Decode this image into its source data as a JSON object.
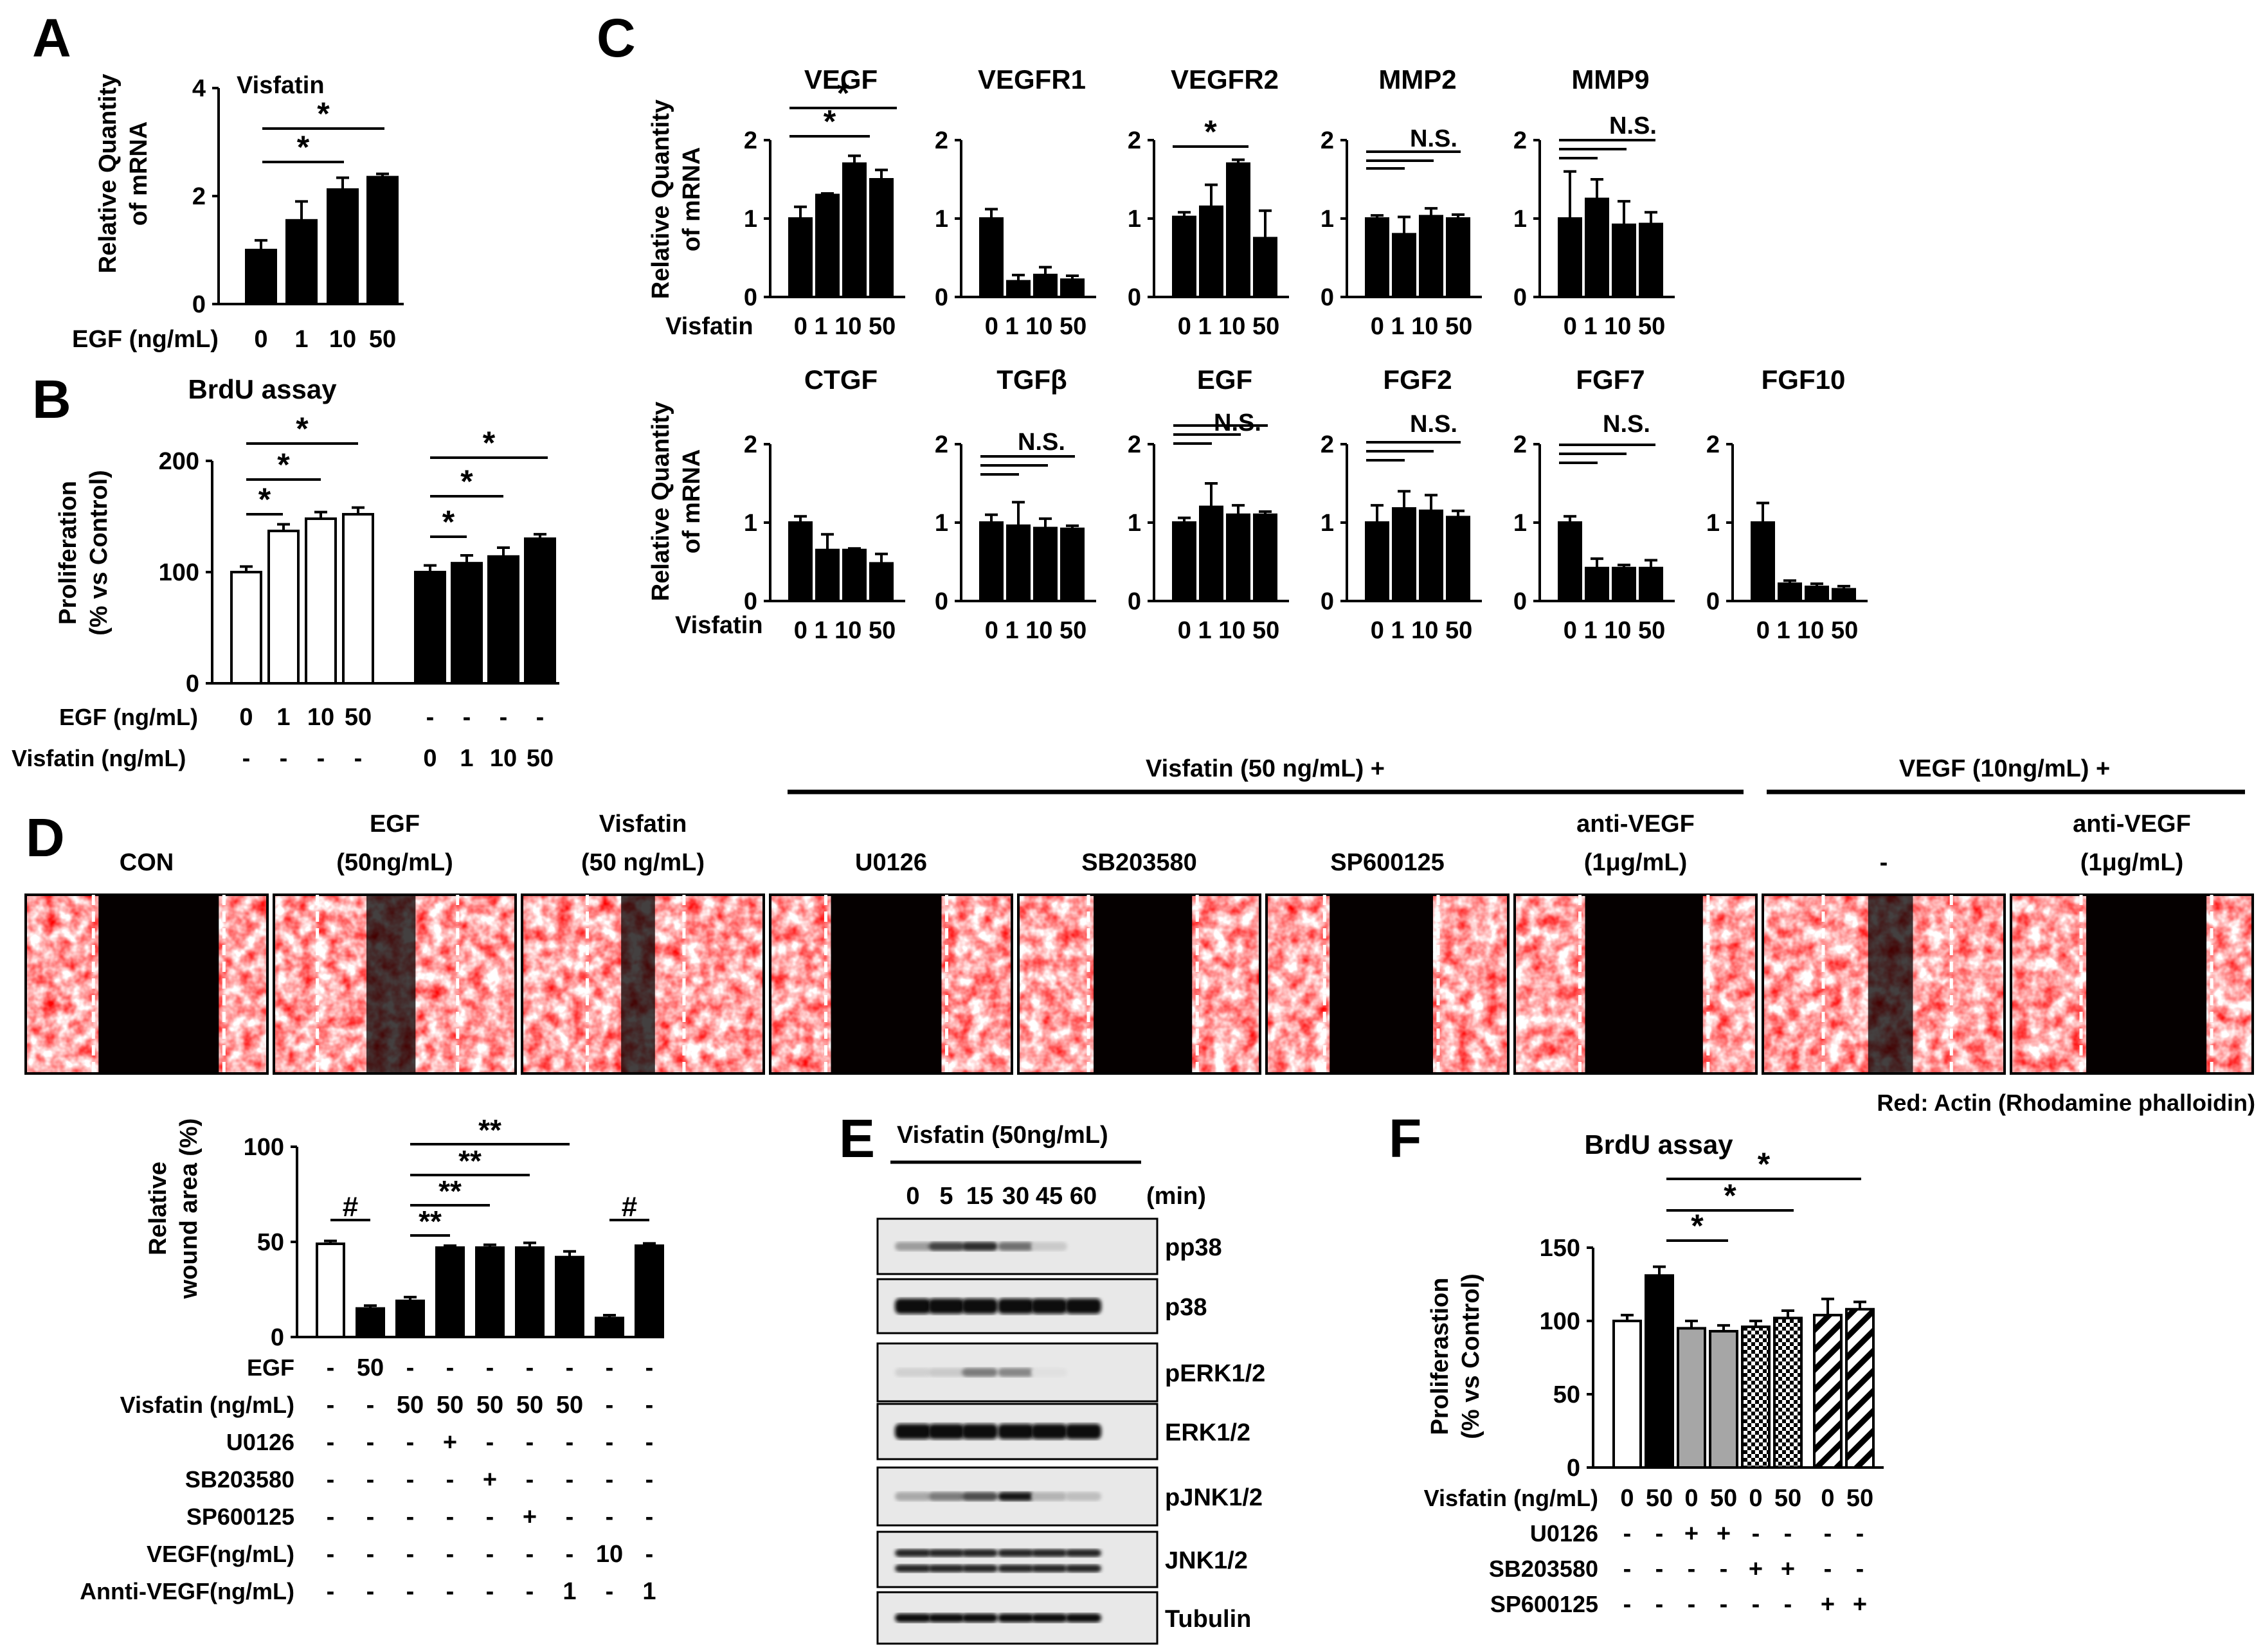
{
  "panels": {
    "A": "A",
    "B": "B",
    "C": "C",
    "D": "D",
    "E": "E",
    "F": "F"
  },
  "common": {
    "star": "*",
    "dstar": "**",
    "hash": "#",
    "ns": "N.S.",
    "minus": "-",
    "plus": "+"
  },
  "panelA": {
    "ylabel1": "Relative Quantity",
    "ylabel2": "of mRNA",
    "xlabel": "EGF (ng/mL)",
    "chart_data": {
      "type": "bar",
      "title": "Visfatin",
      "categories": [
        "0",
        "1",
        "10",
        "50"
      ],
      "values": [
        1.0,
        1.55,
        2.12,
        2.35
      ],
      "errors": [
        0.18,
        0.35,
        0.22,
        0.06
      ],
      "ylim": [
        0,
        4
      ],
      "yticks": [
        "0",
        "2",
        "4"
      ]
    }
  },
  "panelB": {
    "title": "BrdU assay",
    "ylabel1": "Proliferation",
    "ylabel2": "(% vs  Control)",
    "row_labels": [
      "EGF (ng/mL)",
      "Visfatin (ng/mL)"
    ],
    "chart_data": {
      "type": "bar",
      "ylim": [
        0,
        200
      ],
      "yticks": [
        "0",
        "100",
        "200"
      ],
      "series": [
        {
          "name": "EGF",
          "fill": "#ffffff",
          "values": [
            100,
            137,
            148,
            152
          ],
          "errors": [
            5,
            6,
            6,
            6
          ]
        },
        {
          "name": "Visfatin",
          "fill": "#000000",
          "values": [
            100,
            108,
            114,
            130
          ],
          "errors": [
            6,
            7,
            8,
            4
          ]
        }
      ],
      "egf_row": [
        "0",
        "1",
        "10",
        "50",
        "-",
        "-",
        "-",
        "-"
      ],
      "visfatin_row": [
        "-",
        "-",
        "-",
        "-",
        "0",
        "1",
        "10",
        "50"
      ]
    }
  },
  "panelC": {
    "ylabel1": "Relative Quantity",
    "ylabel2": "of  mRNA",
    "xlabel": "Visfatin",
    "categories": [
      "0",
      "1",
      "10",
      "50"
    ],
    "row1_xticks": [
      "0 1 10 50",
      "0 1 10 50",
      "0 1 10 50",
      "0 1 10 50",
      "0 1 10 50"
    ],
    "row2_xticks": [
      "0  1 10 50",
      "0  1 10 50",
      "0  1 10 50",
      "0  1 10 50",
      "0  1 10 50",
      "0  1 10 50"
    ],
    "chart_data": [
      {
        "type": "bar",
        "title": "VEGF",
        "values": [
          1.0,
          1.3,
          1.7,
          1.5
        ],
        "errors": [
          0.15,
          0.02,
          0.1,
          0.12
        ],
        "ylim": [
          0,
          2
        ]
      },
      {
        "type": "bar",
        "title": "VEGFR1",
        "values": [
          1.0,
          0.2,
          0.28,
          0.22
        ],
        "errors": [
          0.12,
          0.08,
          0.1,
          0.05
        ],
        "ylim": [
          0,
          2
        ]
      },
      {
        "type": "bar",
        "title": "VEGFR2",
        "values": [
          1.02,
          1.15,
          1.7,
          0.75
        ],
        "errors": [
          0.06,
          0.28,
          0.05,
          0.35
        ],
        "ylim": [
          0,
          2
        ]
      },
      {
        "type": "bar",
        "title": "MMP2",
        "values": [
          1.0,
          0.8,
          1.03,
          1.0
        ],
        "errors": [
          0.04,
          0.22,
          0.1,
          0.05
        ],
        "ylim": [
          0,
          2
        ]
      },
      {
        "type": "bar",
        "title": "MMP9",
        "values": [
          1.0,
          1.25,
          0.92,
          0.93
        ],
        "errors": [
          0.6,
          0.25,
          0.3,
          0.15
        ],
        "ylim": [
          0,
          2
        ]
      },
      {
        "type": "bar",
        "title": "CTGF",
        "values": [
          1.0,
          0.65,
          0.65,
          0.48
        ],
        "errors": [
          0.08,
          0.2,
          0.02,
          0.12
        ],
        "ylim": [
          0,
          2
        ]
      },
      {
        "type": "bar",
        "title": "TGFβ",
        "values": [
          1.0,
          0.96,
          0.93,
          0.92
        ],
        "errors": [
          0.1,
          0.3,
          0.12,
          0.04
        ],
        "ylim": [
          0,
          2
        ]
      },
      {
        "type": "bar",
        "title": "EGF",
        "values": [
          1.0,
          1.2,
          1.1,
          1.1
        ],
        "errors": [
          0.06,
          0.3,
          0.12,
          0.04
        ],
        "ylim": [
          0,
          2
        ]
      },
      {
        "type": "bar",
        "title": "FGF2",
        "values": [
          1.0,
          1.18,
          1.15,
          1.07
        ],
        "errors": [
          0.22,
          0.22,
          0.2,
          0.08
        ],
        "ylim": [
          0,
          2
        ]
      },
      {
        "type": "bar",
        "title": "FGF7",
        "values": [
          1.0,
          0.42,
          0.42,
          0.42
        ],
        "errors": [
          0.08,
          0.12,
          0.04,
          0.1
        ],
        "ylim": [
          0,
          2
        ]
      },
      {
        "type": "bar",
        "title": "FGF10",
        "values": [
          1.0,
          0.22,
          0.18,
          0.15
        ],
        "errors": [
          0.25,
          0.04,
          0.04,
          0.04
        ],
        "ylim": [
          0,
          2
        ]
      }
    ]
  },
  "panelD": {
    "group1": "Visfatin (50 ng/mL) +",
    "group2": "VEGF (10ng/mL) +",
    "images": [
      {
        "l1": "",
        "l2": "CON"
      },
      {
        "l1": "EGF",
        "l2": "(50ng/mL)"
      },
      {
        "l1": "Visfatin",
        "l2": "(50 ng/mL)"
      },
      {
        "l1": "",
        "l2": "U0126"
      },
      {
        "l1": "",
        "l2": "SB203580"
      },
      {
        "l1": "",
        "l2": "SP600125"
      },
      {
        "l1": "anti-VEGF",
        "l2": "(1μg/mL)"
      },
      {
        "l1": "",
        "l2": "-"
      },
      {
        "l1": "anti-VEGF",
        "l2": "(1μg/mL)"
      }
    ],
    "caption": "Red: Actin (Rhodamine phalloidin)",
    "ylabel1": "Relative",
    "ylabel2": "wound area (%)",
    "row_labels": [
      "EGF",
      "Visfatin (ng/mL)",
      "U0126",
      "SB203580",
      "SP600125",
      "VEGF(ng/mL)",
      "Annti-VEGF(ng/mL)"
    ],
    "rows": [
      [
        "-",
        "50",
        "-",
        "-",
        "-",
        "-",
        "-",
        "-",
        "-"
      ],
      [
        "-",
        "-",
        "50",
        "50",
        "50",
        "50",
        "50",
        "-",
        "-"
      ],
      [
        "-",
        "-",
        "-",
        "+",
        "-",
        "-",
        "-",
        "-",
        "-"
      ],
      [
        "-",
        "-",
        "-",
        "-",
        "+",
        "-",
        "-",
        "-",
        "-"
      ],
      [
        "-",
        "-",
        "-",
        "-",
        "-",
        "+",
        "-",
        "-",
        "-"
      ],
      [
        "-",
        "-",
        "-",
        "-",
        "-",
        "-",
        "-",
        "10",
        "-"
      ],
      [
        "-",
        "-",
        "-",
        "-",
        "-",
        "-",
        "1",
        "-",
        "1"
      ]
    ],
    "chart_data": {
      "type": "bar",
      "ylim": [
        0,
        100
      ],
      "yticks": [
        "0",
        "50",
        "100"
      ],
      "values": [
        49,
        15,
        19,
        47,
        47,
        47,
        42,
        10,
        48
      ],
      "errors": [
        1.5,
        1.5,
        2,
        1,
        1.5,
        2.5,
        3,
        1.5,
        1.2
      ],
      "fills": [
        "#ffffff",
        "#000000",
        "#000000",
        "#000000",
        "#000000",
        "#000000",
        "#000000",
        "#000000",
        "#000000"
      ]
    }
  },
  "panelE": {
    "treatment": "Visfatin (50ng/mL)",
    "times": [
      "0",
      "5",
      "15",
      "30",
      "45",
      "60"
    ],
    "time_unit": "(min)",
    "blots": [
      {
        "label": "pp38",
        "intensity": [
          0.35,
          0.75,
          0.85,
          0.55,
          0.15,
          0.0
        ]
      },
      {
        "label": "p38",
        "intensity": [
          1,
          1,
          1,
          1,
          1,
          1
        ]
      },
      {
        "label": "pERK1/2",
        "intensity": [
          0.12,
          0.15,
          0.5,
          0.45,
          0.05,
          0.0
        ]
      },
      {
        "label": "ERK1/2",
        "intensity": [
          1,
          1,
          1,
          1,
          1,
          1
        ]
      },
      {
        "label": "pJNK1/2",
        "intensity": [
          0.3,
          0.5,
          0.7,
          0.95,
          0.25,
          0.2
        ]
      },
      {
        "label": "JNK1/2",
        "intensity": [
          0.9,
          0.9,
          0.9,
          0.9,
          0.9,
          0.9
        ]
      },
      {
        "label": "Tubulin",
        "intensity": [
          1,
          1,
          1,
          1,
          1,
          1
        ]
      }
    ]
  },
  "panelF": {
    "title": "BrdU assay",
    "ylabel1": "Proliferastion",
    "ylabel2": "(% vs  Control)",
    "row_labels": [
      "Visfatin (ng/mL)",
      "U0126",
      "SB203580",
      "SP600125"
    ],
    "rows": [
      [
        "0",
        "50",
        "0",
        "50",
        "0",
        "50",
        "0",
        "50"
      ],
      [
        "-",
        "-",
        "+",
        "+",
        "-",
        "-",
        "-",
        "-"
      ],
      [
        "-",
        "-",
        "-",
        "-",
        "+",
        "+",
        "-",
        "-"
      ],
      [
        "-",
        "-",
        "-",
        "-",
        "-",
        "-",
        "+",
        "+"
      ]
    ],
    "chart_data": {
      "type": "bar",
      "ylim": [
        0,
        150
      ],
      "yticks": [
        "0",
        "50",
        "100",
        "150"
      ],
      "values": [
        100,
        131,
        95,
        93,
        96,
        102,
        104,
        108
      ],
      "errors": [
        4,
        6,
        5,
        4,
        4,
        5,
        11,
        5
      ],
      "fills": [
        "white",
        "black",
        "gray",
        "gray",
        "check",
        "check",
        "hatch",
        "hatch"
      ]
    }
  }
}
